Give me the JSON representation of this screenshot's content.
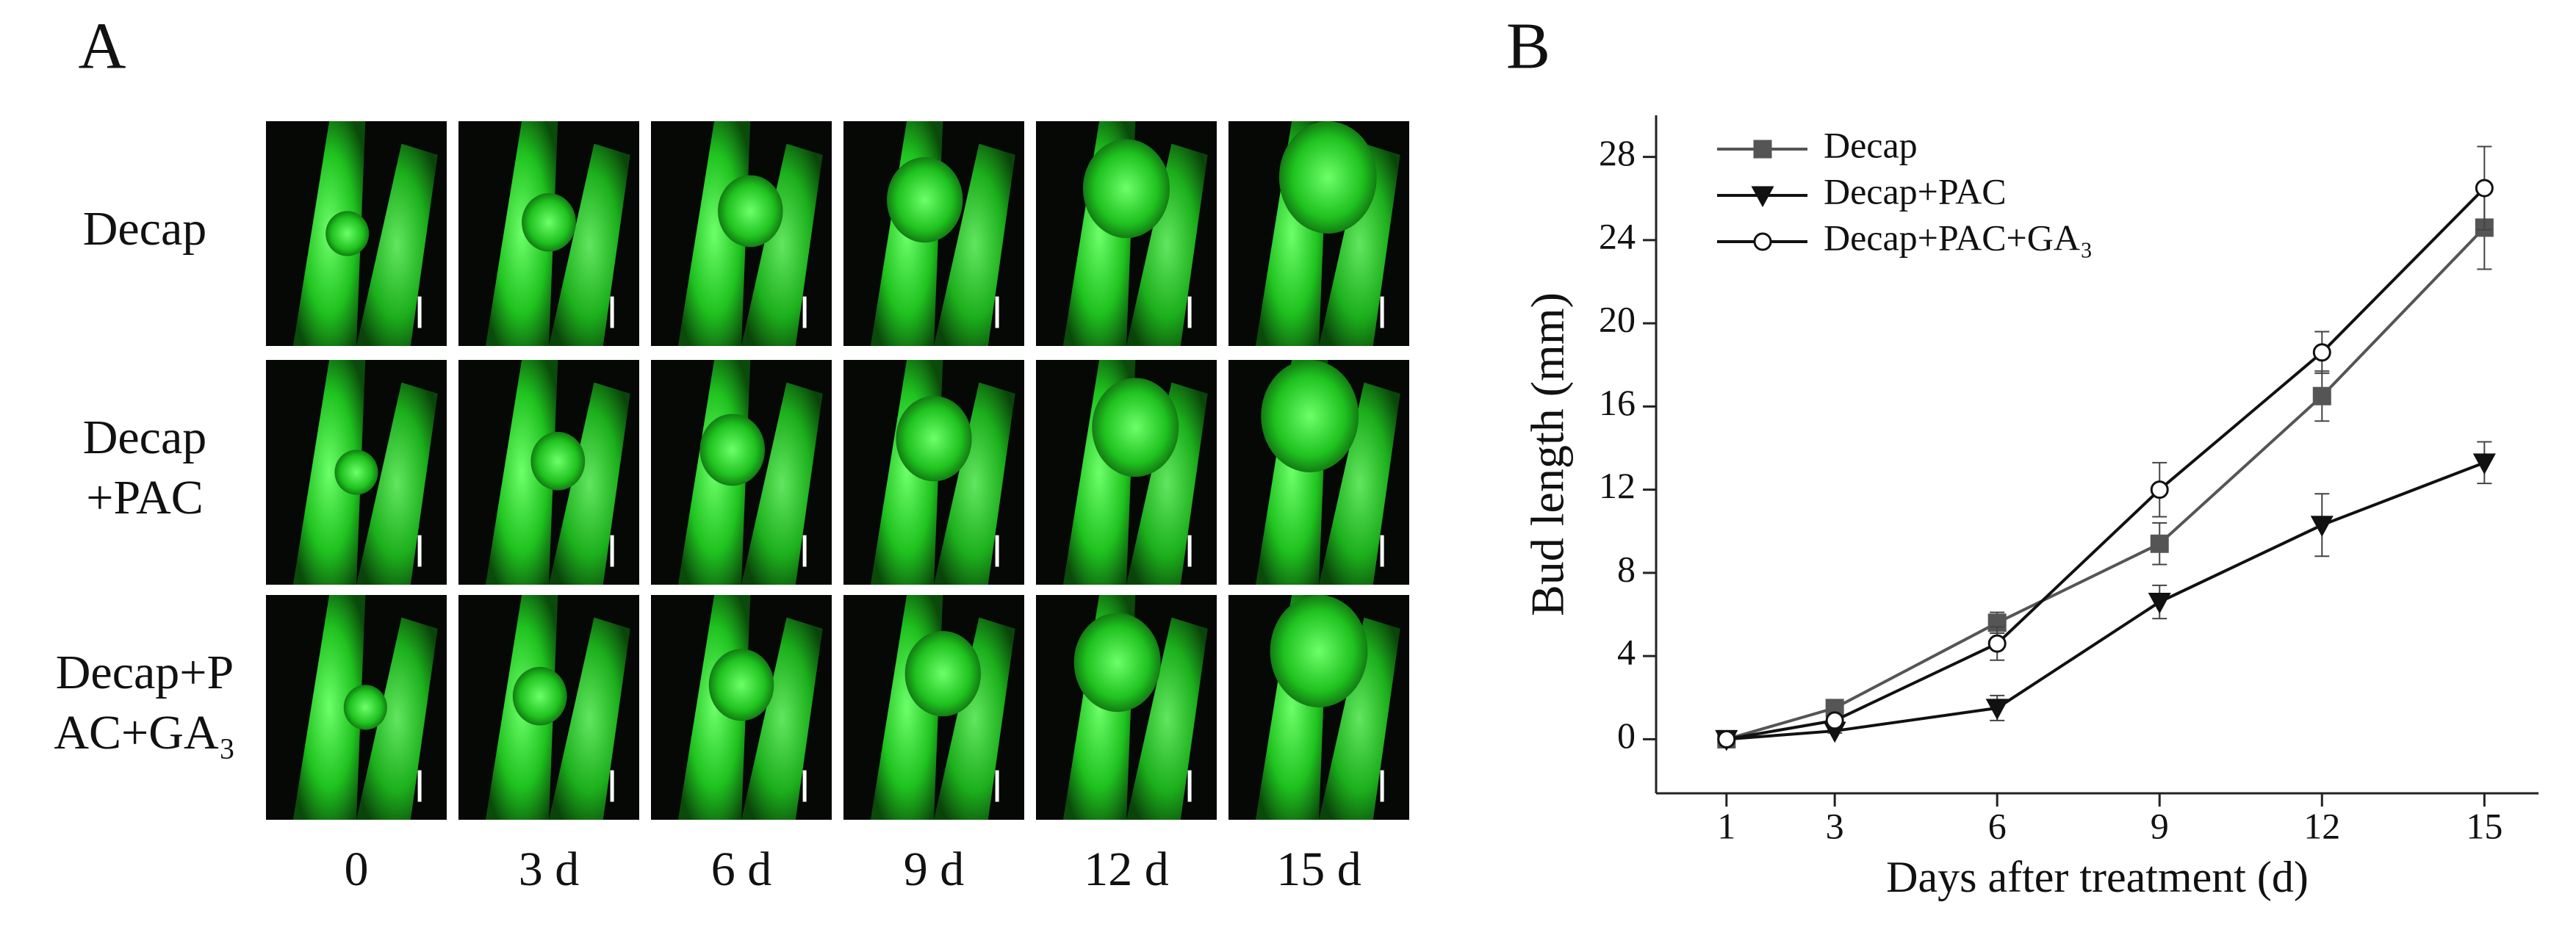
{
  "panel_a": {
    "label": "A",
    "rows": [
      {
        "lines": [
          "Decap"
        ]
      },
      {
        "lines": [
          "Decap",
          "+PAC"
        ]
      },
      {
        "lines": [
          "Decap+P",
          "AC+GA₃"
        ]
      }
    ],
    "columns": [
      "0",
      "3 d",
      "6 d",
      "9 d",
      "12 d",
      "15 d"
    ]
  },
  "chart_data": {
    "type": "line",
    "panel_label": "B",
    "x_label": "Days after treatment (d)",
    "y_label": "Bud length (mm)",
    "x": [
      1,
      3,
      6,
      9,
      12,
      15
    ],
    "series": [
      {
        "name": "Decap",
        "color": "#555555",
        "marker": "square",
        "values": [
          0,
          1.5,
          5.6,
          9.4,
          16.5,
          24.6
        ],
        "errors": [
          0.2,
          0.2,
          0.5,
          1.0,
          1.2,
          2.0
        ]
      },
      {
        "name": "Decap+PAC",
        "color": "#111111",
        "marker": "triangle-down",
        "values": [
          0,
          0.4,
          1.5,
          6.6,
          10.3,
          13.3
        ],
        "errors": [
          0.1,
          0.1,
          0.6,
          0.8,
          1.5,
          1.0
        ]
      },
      {
        "name": "Decap+PAC+GA₃",
        "color": "#111111",
        "marker": "open-circle",
        "values": [
          0,
          0.9,
          4.6,
          12.0,
          18.6,
          26.5
        ],
        "errors": [
          0.1,
          0.2,
          0.8,
          1.3,
          1.0,
          2.0
        ]
      }
    ],
    "xlim": [
      -0.3,
      16
    ],
    "xticks": [
      1,
      3,
      6,
      9,
      12,
      15
    ],
    "ylim": [
      -2.6,
      30
    ],
    "yticks": [
      0,
      4,
      8,
      12,
      16,
      20,
      24,
      28
    ],
    "legend": "top-left",
    "grid": false
  }
}
